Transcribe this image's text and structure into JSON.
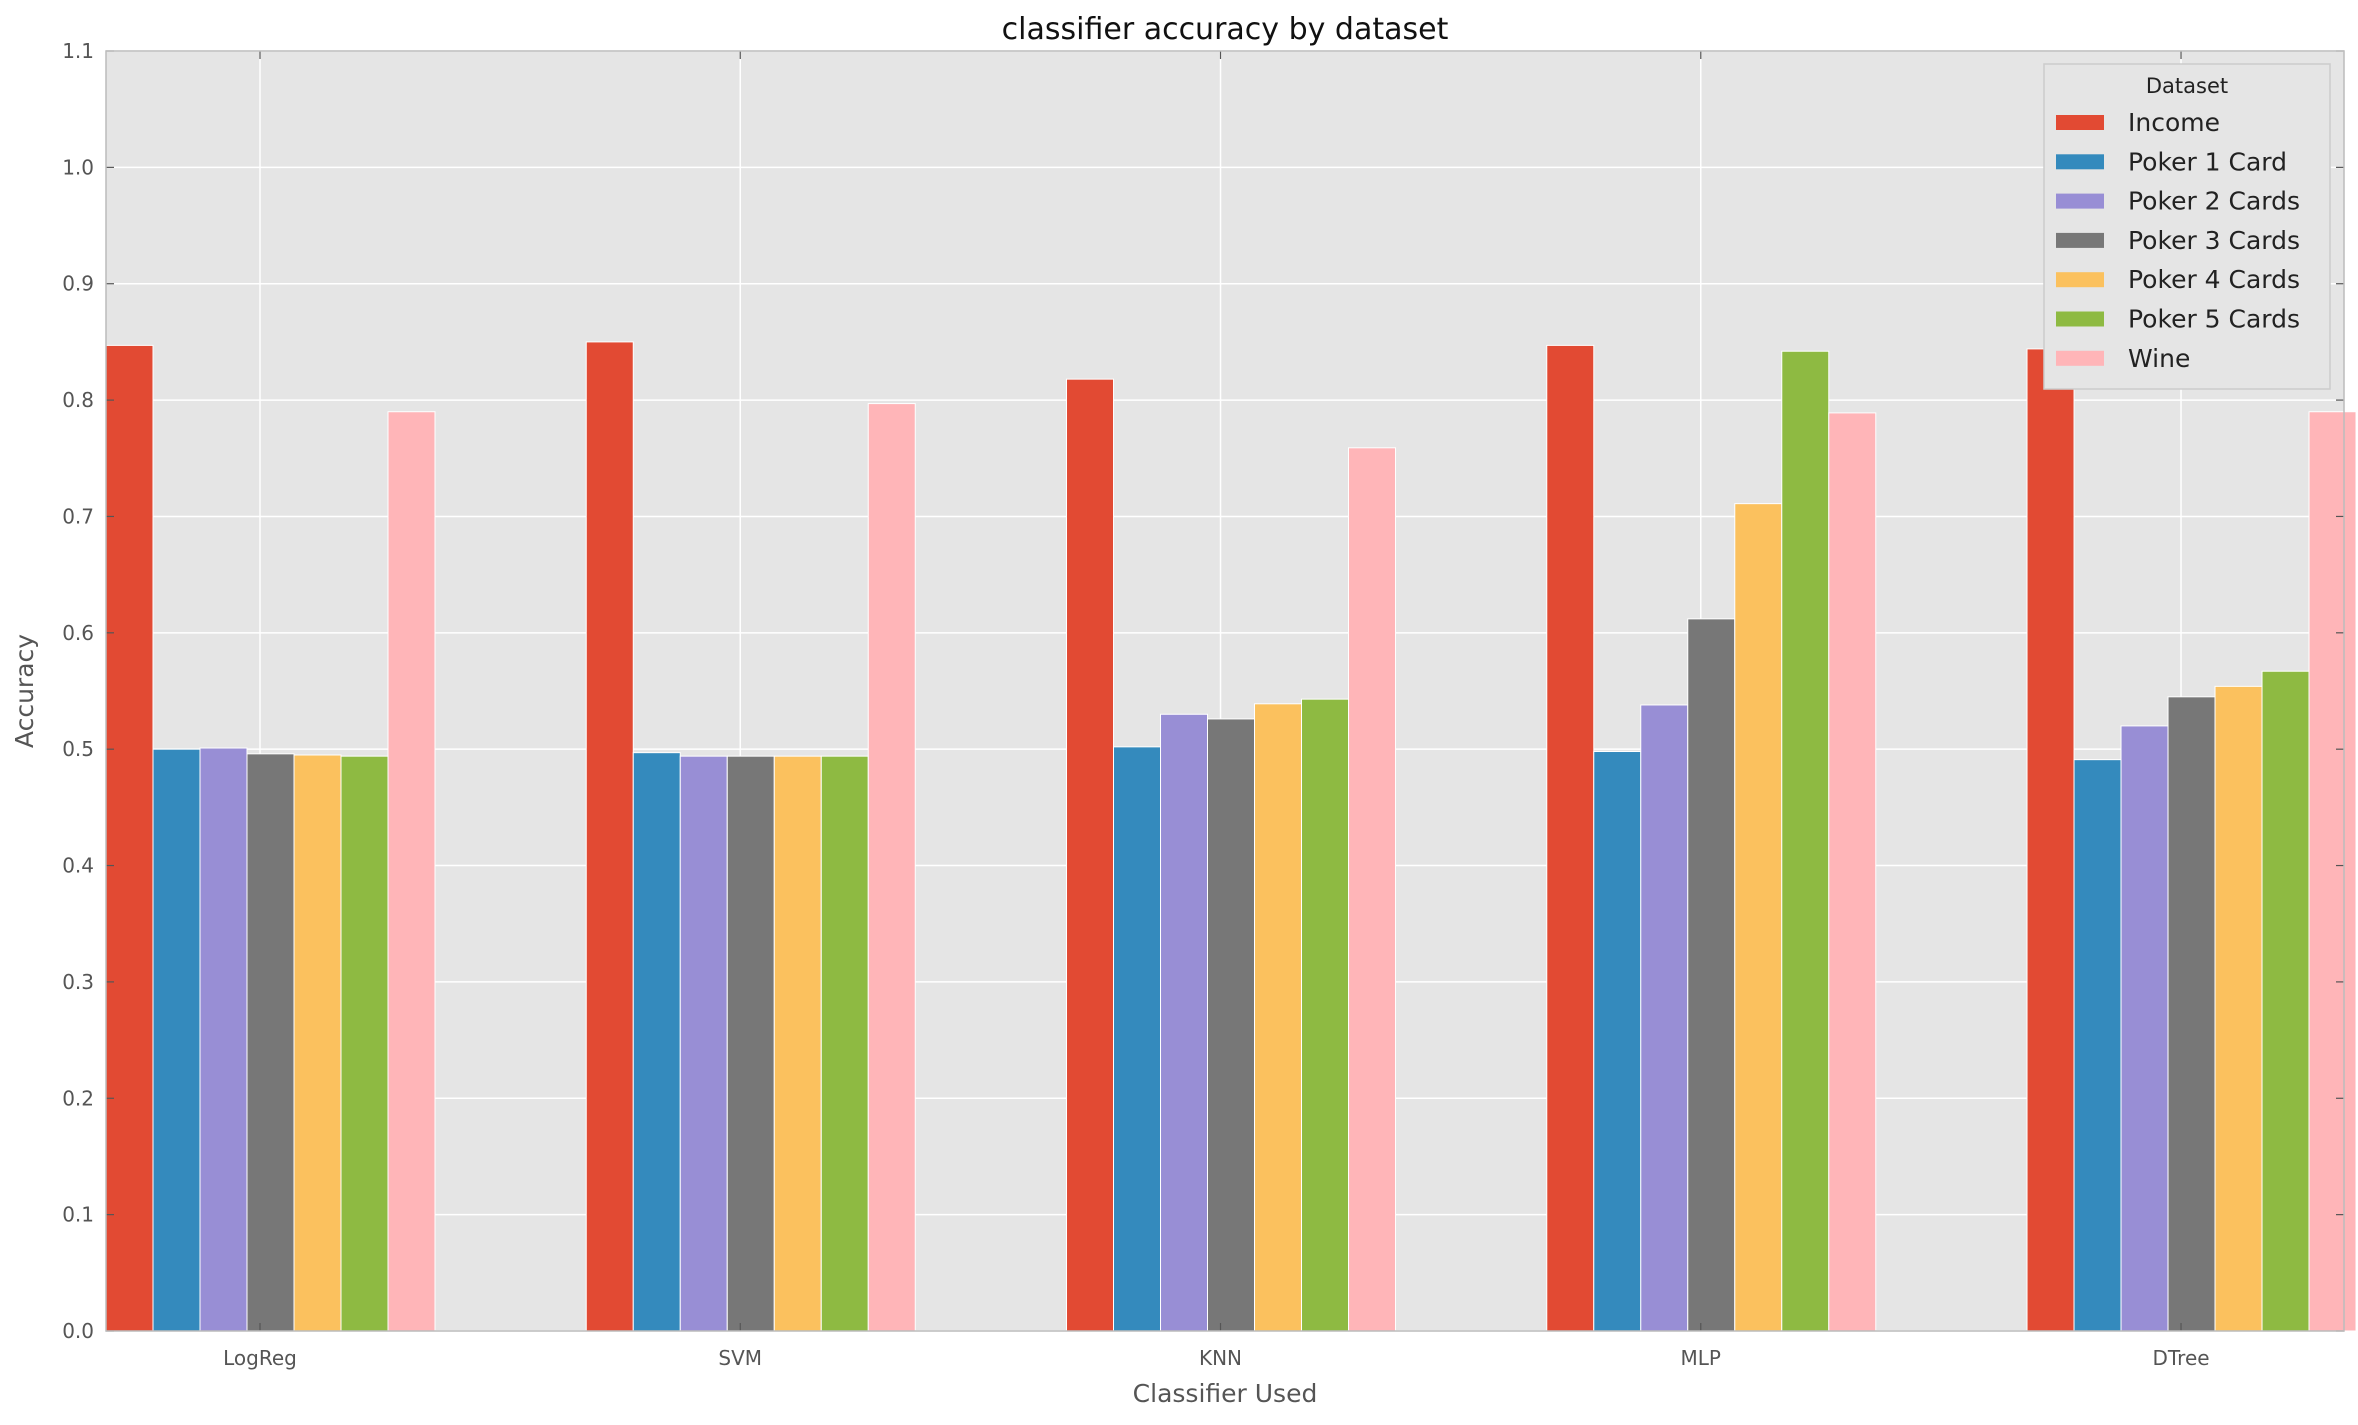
{
  "chart_data": {
    "type": "bar",
    "title": "classifier accuracy by dataset",
    "xlabel": "Classifier Used",
    "ylabel": "Accuracy",
    "ylim": [
      0.0,
      1.1
    ],
    "yticks": [
      "0.0",
      "0.1",
      "0.2",
      "0.3",
      "0.4",
      "0.5",
      "0.6",
      "0.7",
      "0.8",
      "0.9",
      "1.0",
      "1.1"
    ],
    "grid": true,
    "background": "#e5e5e5",
    "legend_title": "Dataset",
    "legend_position": "top-right",
    "categories": [
      "LogReg",
      "SVM",
      "KNN",
      "MLP",
      "DTree"
    ],
    "series": [
      {
        "name": "Income",
        "color": "#e24a33",
        "values": [
          0.847,
          0.85,
          0.818,
          0.847,
          0.844
        ]
      },
      {
        "name": "Poker 1 Card",
        "color": "#348abd",
        "values": [
          0.5,
          0.497,
          0.502,
          0.498,
          0.491
        ]
      },
      {
        "name": "Poker 2 Cards",
        "color": "#988ed5",
        "values": [
          0.501,
          0.494,
          0.53,
          0.538,
          0.52
        ]
      },
      {
        "name": "Poker 3 Cards",
        "color": "#777777",
        "values": [
          0.496,
          0.494,
          0.526,
          0.612,
          0.545
        ]
      },
      {
        "name": "Poker 4 Cards",
        "color": "#fbc15e",
        "values": [
          0.495,
          0.494,
          0.539,
          0.711,
          0.554
        ]
      },
      {
        "name": "Poker 5 Cards",
        "color": "#8eba42",
        "values": [
          0.494,
          0.494,
          0.543,
          0.842,
          0.567
        ]
      },
      {
        "name": "Wine",
        "color": "#ffb5b8",
        "values": [
          0.79,
          0.797,
          0.759,
          0.789,
          0.79
        ]
      }
    ]
  }
}
